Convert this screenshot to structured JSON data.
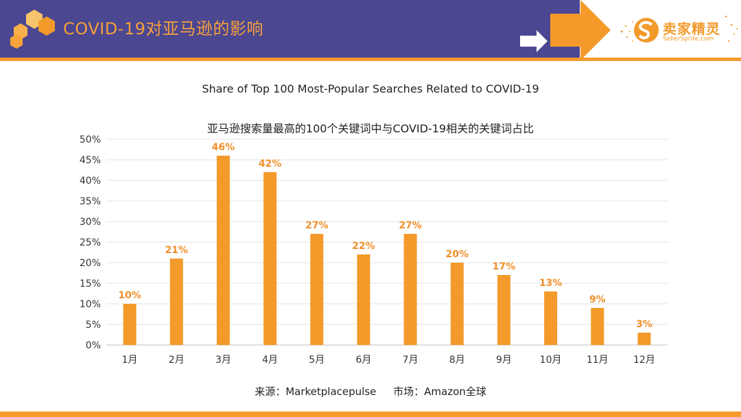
{
  "header": {
    "title": "COVID-19对亚马逊的影响",
    "logo_text": "卖家精灵",
    "logo_sub": "SellerSprite.com",
    "band_color": "#4b4791",
    "accent_color": "#f39a2b"
  },
  "chart_data": {
    "type": "bar",
    "title": "Share of Top 100 Most-Popular Searches Related to COVID-19",
    "subtitle": "亚马逊搜索量最高的100个关键词中与COVID-19相关的关键词占比",
    "categories": [
      "1月",
      "2月",
      "3月",
      "4月",
      "5月",
      "6月",
      "7月",
      "8月",
      "9月",
      "10月",
      "11月",
      "12月"
    ],
    "values": [
      10,
      21,
      46,
      42,
      27,
      22,
      27,
      20,
      17,
      13,
      9,
      3
    ],
    "data_labels": [
      "10%",
      "21%",
      "46%",
      "42%",
      "27%",
      "22%",
      "27%",
      "20%",
      "17%",
      "13%",
      "9%",
      "3%"
    ],
    "yticks": [
      "0%",
      "5%",
      "10%",
      "15%",
      "20%",
      "25%",
      "30%",
      "35%",
      "40%",
      "45%",
      "50%"
    ],
    "ylim": [
      0,
      50
    ],
    "ystep": 5,
    "grid": true,
    "bar_color": "#f39a2b",
    "label_color": "#ef8f2a"
  },
  "footer": {
    "source": "来源：Marketplacepulse",
    "market": "市场：Amazon全球"
  }
}
